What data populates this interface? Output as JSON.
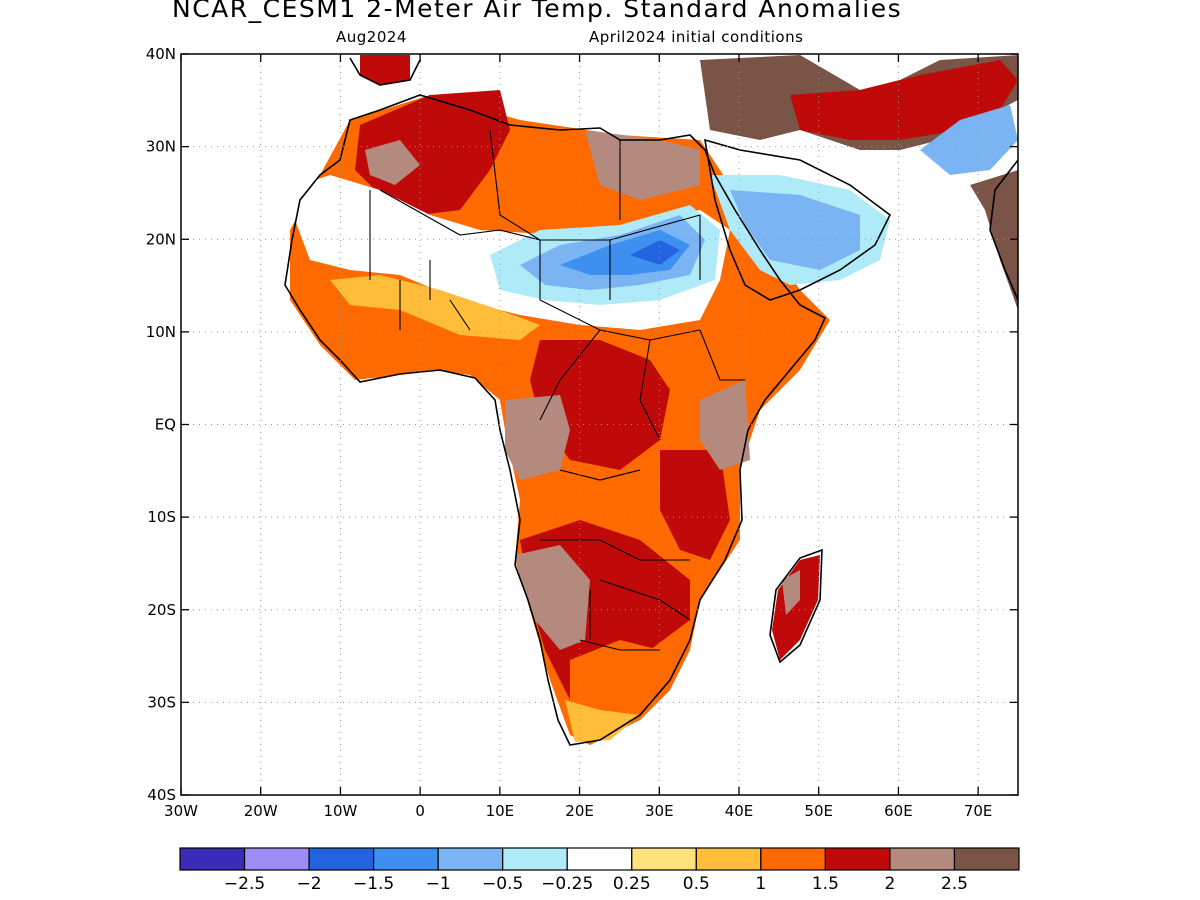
{
  "header": {
    "title": "NCAR_CESM1 2-Meter Air Temp. Standard Anomalies",
    "valid": "Aug2024",
    "initial": "April2024 initial conditions"
  },
  "map": {
    "lat_ticks": [
      "40N",
      "30N",
      "20N",
      "10N",
      "EQ",
      "10S",
      "20S",
      "30S",
      "40S"
    ],
    "lon_ticks": [
      "30W",
      "20W",
      "10W",
      "0",
      "10E",
      "20E",
      "30E",
      "40E",
      "50E",
      "60E",
      "70E"
    ],
    "lat_range": [
      -40,
      40
    ],
    "lon_range": [
      -30,
      75
    ],
    "grid": "dotted"
  },
  "colorbar": {
    "colors": [
      "#3a2bb8",
      "#9d8cf5",
      "#2463e0",
      "#3d90ef",
      "#7ab4f3",
      "#aeeaf7",
      "#ffffff",
      "#ffe27a",
      "#ffbd3a",
      "#ff6a00",
      "#c00a0a",
      "#b38a7d",
      "#7a5446"
    ],
    "labels": [
      "-2.5",
      "-2",
      "-1.5",
      "-1",
      "-0.5",
      "-0.25",
      "0.25",
      "0.5",
      "1",
      "1.5",
      "2",
      "2.5"
    ]
  }
}
